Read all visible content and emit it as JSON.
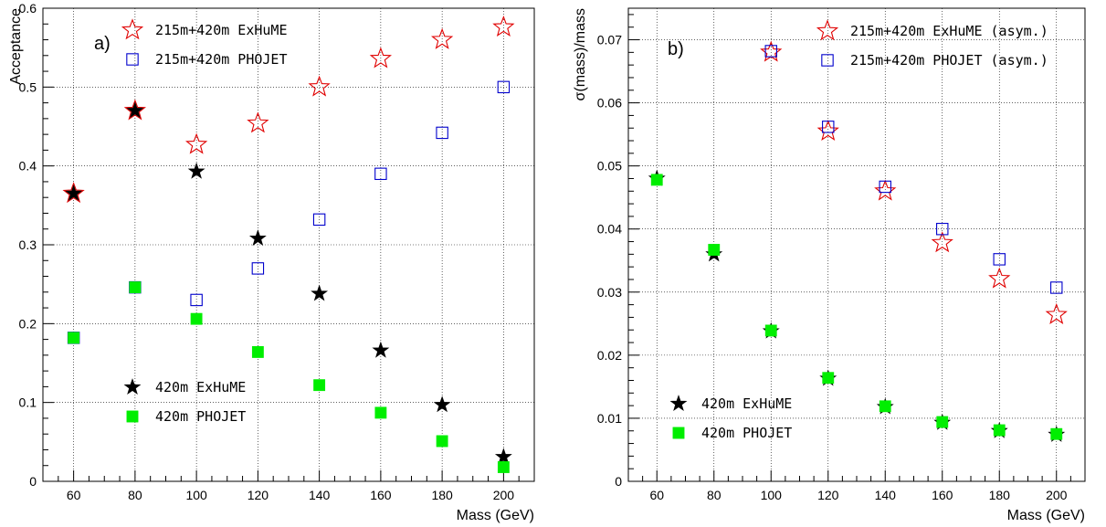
{
  "chart_data": [
    {
      "panel_label": "a)",
      "type": "scatter",
      "xlabel": "Mass (GeV)",
      "ylabel": "Acceptance",
      "xlim": [
        50,
        210
      ],
      "ylim": [
        0,
        0.6
      ],
      "xticks": [
        60,
        80,
        100,
        120,
        140,
        160,
        180,
        200
      ],
      "yticks": [
        0,
        0.1,
        0.2,
        0.3,
        0.4,
        0.5,
        0.6
      ],
      "ytick_labels": [
        "0",
        "0.1",
        "0.2",
        "0.3",
        "0.4",
        "0.5",
        "0.6"
      ],
      "grid": true,
      "series": [
        {
          "name": "215m+420m ExHuME",
          "marker": "open-star",
          "color": "#e00000",
          "points": [
            [
              60,
              0.365
            ],
            [
              80,
              0.47
            ],
            [
              100,
              0.427
            ],
            [
              120,
              0.454
            ],
            [
              140,
              0.5
            ],
            [
              160,
              0.536
            ],
            [
              180,
              0.56
            ],
            [
              200,
              0.576
            ]
          ]
        },
        {
          "name": "215m+420m PHOJET",
          "marker": "open-square",
          "color": "#0000cc",
          "points": [
            [
              60,
              0.182
            ],
            [
              80,
              0.246
            ],
            [
              100,
              0.23
            ],
            [
              120,
              0.27
            ],
            [
              140,
              0.332
            ],
            [
              160,
              0.39
            ],
            [
              180,
              0.442
            ],
            [
              200,
              0.5
            ]
          ]
        },
        {
          "name": "420m ExHuME",
          "marker": "filled-star",
          "color": "#000000",
          "points": [
            [
              60,
              0.365
            ],
            [
              80,
              0.47
            ],
            [
              100,
              0.393
            ],
            [
              120,
              0.308
            ],
            [
              140,
              0.238
            ],
            [
              160,
              0.166
            ],
            [
              180,
              0.097
            ],
            [
              200,
              0.031
            ]
          ]
        },
        {
          "name": "420m PHOJET",
          "marker": "filled-square",
          "color": "#00ee00",
          "points": [
            [
              60,
              0.182
            ],
            [
              80,
              0.246
            ],
            [
              100,
              0.206
            ],
            [
              120,
              0.164
            ],
            [
              140,
              0.122
            ],
            [
              160,
              0.087
            ],
            [
              180,
              0.051
            ],
            [
              200,
              0.018
            ]
          ]
        }
      ],
      "legends": [
        {
          "position": "top-right",
          "series": [
            0,
            1
          ]
        },
        {
          "position": "bottom-left",
          "series": [
            2,
            3
          ]
        }
      ]
    },
    {
      "panel_label": "b)",
      "type": "scatter",
      "xlabel": "Mass (GeV)",
      "ylabel": "σ(mass)/mass",
      "xlim": [
        50,
        210
      ],
      "ylim": [
        0,
        0.075
      ],
      "xticks": [
        60,
        80,
        100,
        120,
        140,
        160,
        180,
        200
      ],
      "yticks": [
        0,
        0.01,
        0.02,
        0.03,
        0.04,
        0.05,
        0.06,
        0.07
      ],
      "ytick_labels": [
        "0",
        "0.01",
        "0.02",
        "0.03",
        "0.04",
        "0.05",
        "0.06",
        "0.07"
      ],
      "grid": true,
      "series": [
        {
          "name": "215m+420m ExHuME (asym.)",
          "marker": "open-star",
          "color": "#e00000",
          "points": [
            [
              100,
              0.068
            ],
            [
              120,
              0.0555
            ],
            [
              140,
              0.046
            ],
            [
              160,
              0.0378
            ],
            [
              180,
              0.0321
            ],
            [
              200,
              0.0264
            ]
          ]
        },
        {
          "name": "215m+420m PHOJET (asym.)",
          "marker": "open-square",
          "color": "#0000cc",
          "points": [
            [
              100,
              0.0682
            ],
            [
              120,
              0.0562
            ],
            [
              140,
              0.0467
            ],
            [
              160,
              0.04
            ],
            [
              180,
              0.0352
            ],
            [
              200,
              0.0307
            ]
          ]
        },
        {
          "name": "420m ExHuME",
          "marker": "filled-star",
          "color": "#000000",
          "points": [
            [
              60,
              0.048
            ],
            [
              80,
              0.036
            ],
            [
              100,
              0.0238
            ],
            [
              120,
              0.0163
            ],
            [
              140,
              0.0118
            ],
            [
              160,
              0.0093
            ],
            [
              180,
              0.008
            ],
            [
              200,
              0.0074
            ]
          ]
        },
        {
          "name": "420m PHOJET",
          "marker": "filled-square",
          "color": "#00ee00",
          "points": [
            [
              60,
              0.0478
            ],
            [
              80,
              0.0367
            ],
            [
              100,
              0.0239
            ],
            [
              120,
              0.0164
            ],
            [
              140,
              0.0119
            ],
            [
              160,
              0.0094
            ],
            [
              180,
              0.0081
            ],
            [
              200,
              0.0075
            ]
          ]
        }
      ],
      "legends": [
        {
          "position": "top-right",
          "series": [
            0,
            1
          ]
        },
        {
          "position": "bottom-left",
          "series": [
            2,
            3
          ]
        }
      ]
    }
  ]
}
